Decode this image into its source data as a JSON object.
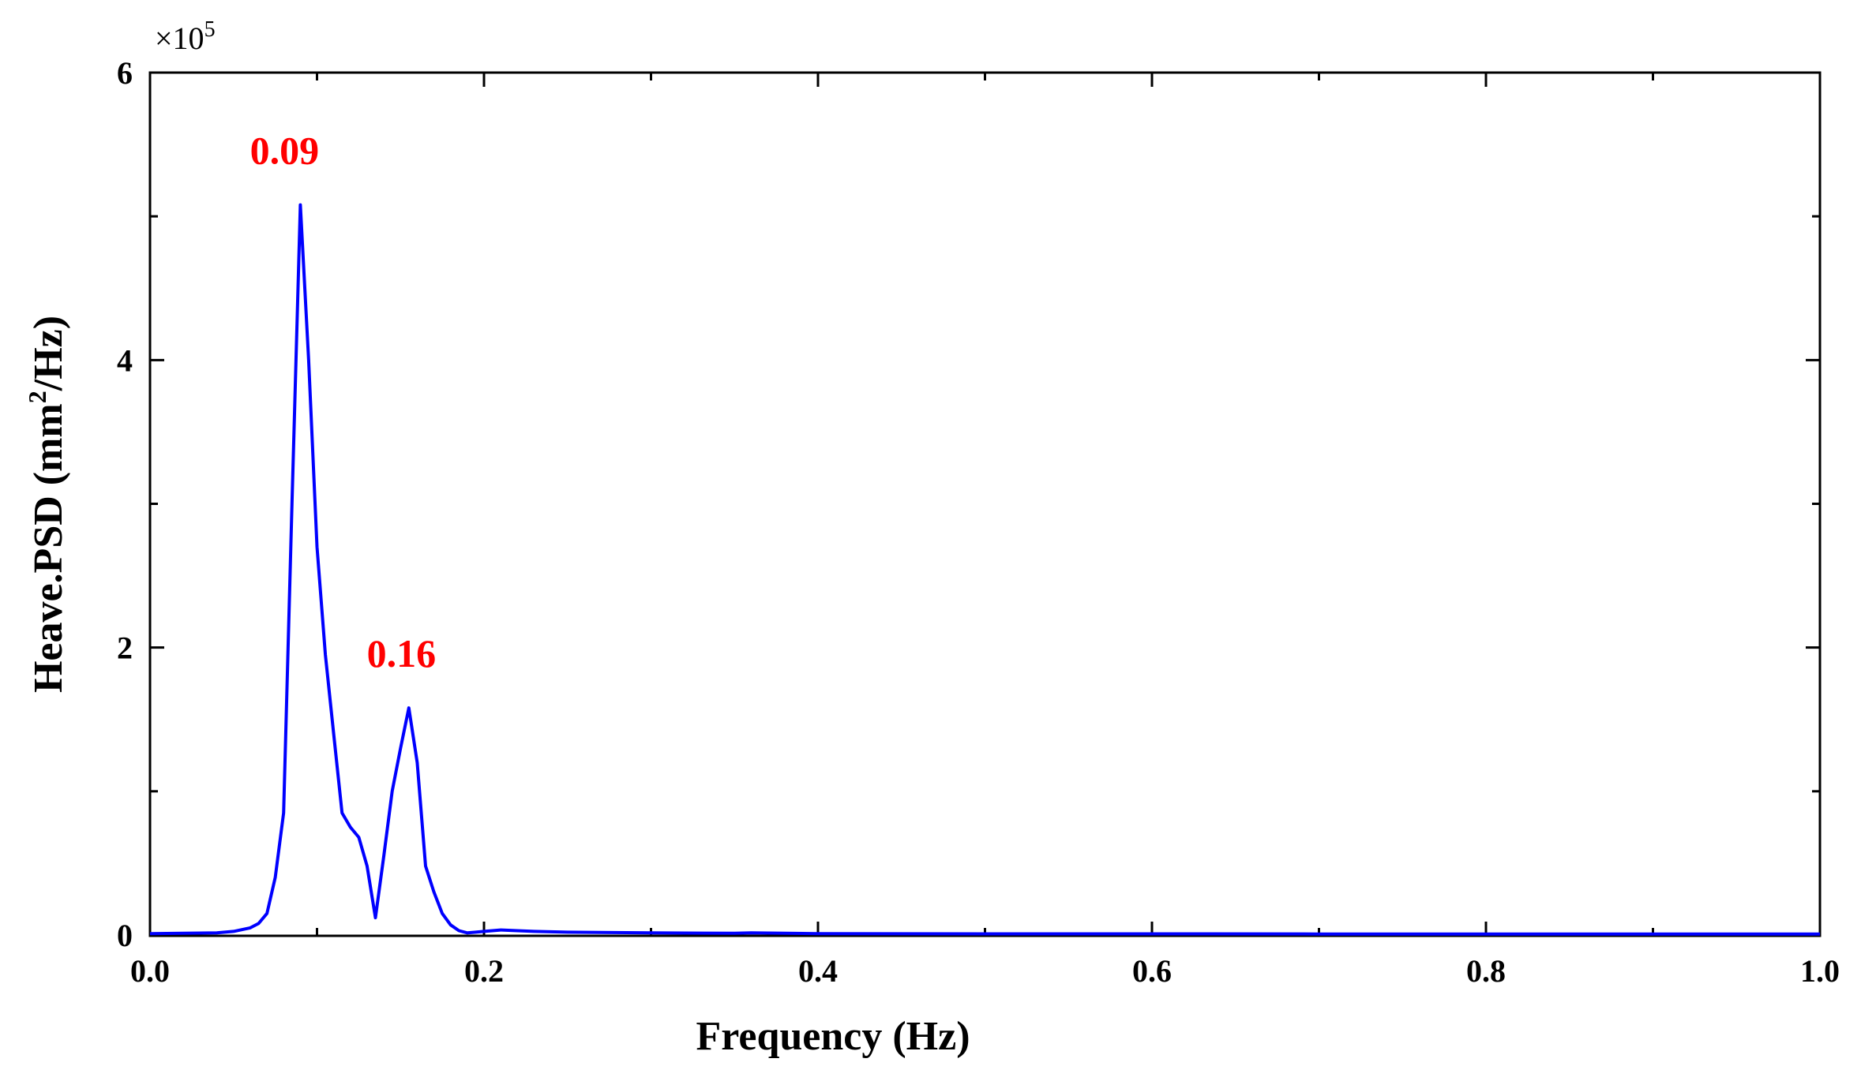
{
  "chart_data": {
    "type": "line",
    "xlabel": "Frequency (Hz)",
    "ylabel_main": "Heave.PSD (mm",
    "ylabel_sup": "2",
    "ylabel_tail": "/Hz)",
    "y_multiplier_base": "×10",
    "y_multiplier_exp": "5",
    "xlim": [
      0,
      1.0
    ],
    "ylim": [
      0,
      6
    ],
    "x_ticks": [
      0.0,
      0.2,
      0.4,
      0.6,
      0.8,
      1.0
    ],
    "x_tick_labels": [
      "0.0",
      "0.2",
      "0.4",
      "0.6",
      "0.8",
      "1.0"
    ],
    "y_ticks": [
      0,
      2,
      4,
      6
    ],
    "y_tick_labels": [
      "0",
      "2",
      "4",
      "6"
    ],
    "grid": false,
    "colors": {
      "series": "#0000ff",
      "annotation": "#ff0000",
      "axis": "#000000"
    },
    "series": [
      {
        "x": [
          0.0,
          0.02,
          0.04,
          0.05,
          0.06,
          0.065,
          0.07,
          0.075,
          0.08,
          0.085,
          0.09,
          0.095,
          0.1,
          0.105,
          0.11,
          0.115,
          0.12,
          0.125,
          0.13,
          0.135,
          0.14,
          0.145,
          0.15,
          0.155,
          0.16,
          0.165,
          0.17,
          0.175,
          0.18,
          0.185,
          0.19,
          0.195,
          0.2,
          0.21,
          0.22,
          0.23,
          0.25,
          0.3,
          0.35,
          0.36,
          0.4,
          0.5,
          0.6,
          0.7,
          0.8,
          0.9,
          1.0
        ],
        "values": [
          0.01,
          0.012,
          0.015,
          0.025,
          0.05,
          0.08,
          0.15,
          0.4,
          0.85,
          3.0,
          5.08,
          4.0,
          2.7,
          1.95,
          1.4,
          0.85,
          0.75,
          0.68,
          0.48,
          0.12,
          0.55,
          1.0,
          1.3,
          1.58,
          1.2,
          0.48,
          0.3,
          0.15,
          0.07,
          0.03,
          0.015,
          0.02,
          0.025,
          0.035,
          0.03,
          0.025,
          0.02,
          0.015,
          0.012,
          0.015,
          0.01,
          0.008,
          0.008,
          0.007,
          0.007,
          0.007,
          0.007
        ]
      }
    ],
    "annotations": [
      {
        "text": "0.09",
        "x": 0.09,
        "y": 5.08
      },
      {
        "text": "0.16",
        "x": 0.16,
        "y": 1.58
      }
    ]
  }
}
